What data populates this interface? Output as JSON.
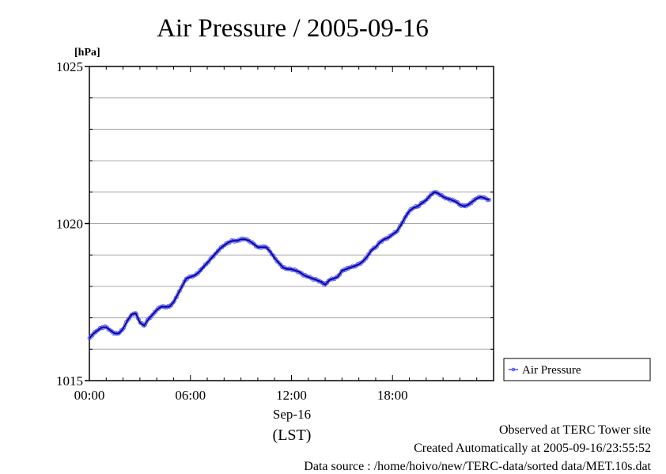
{
  "chart_data": {
    "type": "line",
    "title": "Air Pressure / 2005-09-16",
    "yunit": "[hPa]",
    "ylim": [
      1015,
      1025
    ],
    "y_ticks": [
      1015,
      1020,
      1025
    ],
    "y_minor_grid": [
      1016,
      1017,
      1018,
      1019,
      1021,
      1022,
      1023,
      1024
    ],
    "xlim_hours": [
      0,
      24
    ],
    "x_ticks": [
      {
        "hour": 0,
        "label": "00:00"
      },
      {
        "hour": 6,
        "label": "06:00"
      },
      {
        "hour": 12,
        "label": "12:00"
      },
      {
        "hour": 18,
        "label": "18:00"
      }
    ],
    "date_label": "Sep-16",
    "xlabel": "(LST)",
    "grid": true,
    "legend_position": "right",
    "series": [
      {
        "name": "Air Pressure",
        "color": "#5050ff",
        "line_color": "#000080",
        "x_hours": [
          0,
          0.25,
          0.5,
          0.75,
          1.0,
          1.25,
          1.5,
          1.75,
          2.0,
          2.25,
          2.5,
          2.75,
          3.0,
          3.25,
          3.5,
          3.75,
          4.0,
          4.25,
          4.5,
          4.75,
          5.0,
          5.25,
          5.5,
          5.75,
          6.0,
          6.25,
          6.5,
          6.75,
          7.0,
          7.25,
          7.5,
          7.75,
          8.0,
          8.25,
          8.5,
          8.75,
          9.0,
          9.25,
          9.5,
          9.75,
          10.0,
          10.25,
          10.5,
          10.75,
          11.0,
          11.25,
          11.5,
          11.75,
          12.0,
          12.25,
          12.5,
          12.75,
          13.0,
          13.25,
          13.5,
          13.75,
          14.0,
          14.25,
          14.5,
          14.75,
          15.0,
          15.25,
          15.5,
          15.75,
          16.0,
          16.25,
          16.5,
          16.75,
          17.0,
          17.25,
          17.5,
          17.75,
          18.0,
          18.25,
          18.5,
          18.75,
          19.0,
          19.25,
          19.5,
          19.75,
          20.0,
          20.25,
          20.5,
          20.75,
          21.0,
          21.25,
          21.5,
          21.75,
          22.0,
          22.25,
          22.5,
          22.75,
          23.0,
          23.25,
          23.5,
          23.75
        ],
        "values": [
          1016.35,
          1016.5,
          1016.6,
          1016.7,
          1016.7,
          1016.6,
          1016.5,
          1016.5,
          1016.65,
          1016.9,
          1017.1,
          1017.15,
          1016.85,
          1016.75,
          1016.95,
          1017.1,
          1017.25,
          1017.35,
          1017.35,
          1017.35,
          1017.5,
          1017.75,
          1018.0,
          1018.25,
          1018.3,
          1018.35,
          1018.45,
          1018.6,
          1018.75,
          1018.9,
          1019.05,
          1019.2,
          1019.3,
          1019.4,
          1019.45,
          1019.45,
          1019.5,
          1019.5,
          1019.45,
          1019.35,
          1019.25,
          1019.25,
          1019.25,
          1019.1,
          1018.9,
          1018.75,
          1018.6,
          1018.55,
          1018.55,
          1018.5,
          1018.45,
          1018.35,
          1018.3,
          1018.25,
          1018.2,
          1018.15,
          1018.05,
          1018.2,
          1018.25,
          1018.3,
          1018.5,
          1018.55,
          1018.6,
          1018.65,
          1018.7,
          1018.8,
          1018.95,
          1019.15,
          1019.25,
          1019.4,
          1019.5,
          1019.55,
          1019.65,
          1019.75,
          1019.95,
          1020.2,
          1020.4,
          1020.5,
          1020.55,
          1020.65,
          1020.75,
          1020.9,
          1021.0,
          1020.95,
          1020.85,
          1020.8,
          1020.75,
          1020.7,
          1020.6,
          1020.55,
          1020.6,
          1020.7,
          1020.8,
          1020.85,
          1020.8,
          1020.75
        ]
      }
    ]
  },
  "footer": {
    "observed": "Observed at TERC Tower site",
    "created": "Created Automatically at 2005-09-16/23:55:52",
    "source": "Data source : /home/hoivo/new/TERC-data/sorted  data/MET.10s.dat"
  }
}
